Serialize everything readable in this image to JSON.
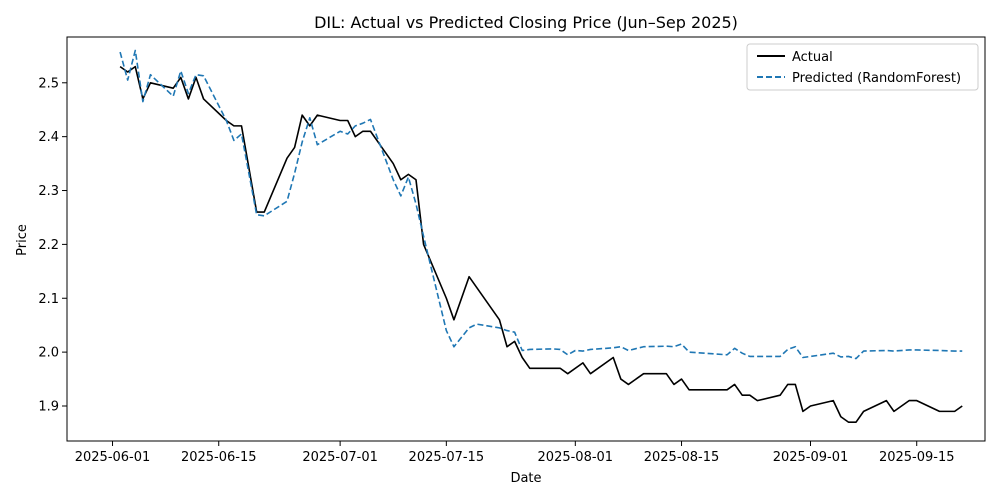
{
  "chart_data": {
    "type": "line",
    "title": "DIL: Actual vs Predicted Closing Price (Jun–Sep 2025)",
    "xlabel": "Date",
    "ylabel": "Price",
    "xlim": [
      "2025-05-26",
      "2025-09-24"
    ],
    "ylim": [
      1.835,
      2.585
    ],
    "x_ticks": [
      "2025-06-01",
      "2025-06-15",
      "2025-07-01",
      "2025-07-15",
      "2025-08-01",
      "2025-08-15",
      "2025-09-01",
      "2025-09-15"
    ],
    "y_ticks": [
      1.9,
      2.0,
      2.1,
      2.2,
      2.3,
      2.4,
      2.5
    ],
    "y_tick_labels": [
      "1.9",
      "2.0",
      "2.1",
      "2.2",
      "2.3",
      "2.4",
      "2.5"
    ],
    "grid": false,
    "legend": {
      "position": "top-right"
    },
    "series": [
      {
        "name": "Actual",
        "color": "#000000",
        "style": "solid",
        "points": [
          [
            "2025-06-02",
            2.53
          ],
          [
            "2025-06-03",
            2.52
          ],
          [
            "2025-06-04",
            2.53
          ],
          [
            "2025-06-05",
            2.47
          ],
          [
            "2025-06-06",
            2.5
          ],
          [
            "2025-06-09",
            2.49
          ],
          [
            "2025-06-10",
            2.51
          ],
          [
            "2025-06-11",
            2.47
          ],
          [
            "2025-06-12",
            2.51
          ],
          [
            "2025-06-13",
            2.47
          ],
          [
            "2025-06-16",
            2.43
          ],
          [
            "2025-06-17",
            2.42
          ],
          [
            "2025-06-18",
            2.42
          ],
          [
            "2025-06-20",
            2.26
          ],
          [
            "2025-06-21",
            2.26
          ],
          [
            "2025-06-24",
            2.36
          ],
          [
            "2025-06-25",
            2.38
          ],
          [
            "2025-06-26",
            2.44
          ],
          [
            "2025-06-27",
            2.42
          ],
          [
            "2025-06-28",
            2.44
          ],
          [
            "2025-07-01",
            2.43
          ],
          [
            "2025-07-02",
            2.43
          ],
          [
            "2025-07-03",
            2.4
          ],
          [
            "2025-07-04",
            2.41
          ],
          [
            "2025-07-05",
            2.41
          ],
          [
            "2025-07-08",
            2.35
          ],
          [
            "2025-07-09",
            2.32
          ],
          [
            "2025-07-10",
            2.33
          ],
          [
            "2025-07-11",
            2.32
          ],
          [
            "2025-07-12",
            2.2
          ],
          [
            "2025-07-15",
            2.1
          ],
          [
            "2025-07-16",
            2.06
          ],
          [
            "2025-07-18",
            2.14
          ],
          [
            "2025-07-22",
            2.06
          ],
          [
            "2025-07-23",
            2.01
          ],
          [
            "2025-07-24",
            2.02
          ],
          [
            "2025-07-25",
            1.99
          ],
          [
            "2025-07-26",
            1.97
          ],
          [
            "2025-07-29",
            1.97
          ],
          [
            "2025-07-30",
            1.97
          ],
          [
            "2025-07-31",
            1.96
          ],
          [
            "2025-08-02",
            1.98
          ],
          [
            "2025-08-03",
            1.96
          ],
          [
            "2025-08-06",
            1.99
          ],
          [
            "2025-08-07",
            1.95
          ],
          [
            "2025-08-08",
            1.94
          ],
          [
            "2025-08-10",
            1.96
          ],
          [
            "2025-08-13",
            1.96
          ],
          [
            "2025-08-14",
            1.94
          ],
          [
            "2025-08-15",
            1.95
          ],
          [
            "2025-08-16",
            1.93
          ],
          [
            "2025-08-21",
            1.93
          ],
          [
            "2025-08-22",
            1.94
          ],
          [
            "2025-08-23",
            1.92
          ],
          [
            "2025-08-24",
            1.92
          ],
          [
            "2025-08-25",
            1.91
          ],
          [
            "2025-08-28",
            1.92
          ],
          [
            "2025-08-29",
            1.94
          ],
          [
            "2025-08-30",
            1.94
          ],
          [
            "2025-08-31",
            1.89
          ],
          [
            "2025-09-01",
            1.9
          ],
          [
            "2025-09-04",
            1.91
          ],
          [
            "2025-09-05",
            1.88
          ],
          [
            "2025-09-06",
            1.87
          ],
          [
            "2025-09-07",
            1.87
          ],
          [
            "2025-09-08",
            1.89
          ],
          [
            "2025-09-11",
            1.91
          ],
          [
            "2025-09-12",
            1.89
          ],
          [
            "2025-09-14",
            1.91
          ],
          [
            "2025-09-15",
            1.91
          ],
          [
            "2025-09-18",
            1.89
          ],
          [
            "2025-09-20",
            1.89
          ],
          [
            "2025-09-21",
            1.9
          ]
        ]
      },
      {
        "name": "Predicted (RandomForest)",
        "color": "#1f77b4",
        "style": "dashed",
        "points": [
          [
            "2025-06-02",
            2.557
          ],
          [
            "2025-06-03",
            2.505
          ],
          [
            "2025-06-04",
            2.56
          ],
          [
            "2025-06-05",
            2.465
          ],
          [
            "2025-06-06",
            2.515
          ],
          [
            "2025-06-09",
            2.475
          ],
          [
            "2025-06-10",
            2.522
          ],
          [
            "2025-06-11",
            2.48
          ],
          [
            "2025-06-12",
            2.515
          ],
          [
            "2025-06-13",
            2.513
          ],
          [
            "2025-06-16",
            2.43
          ],
          [
            "2025-06-17",
            2.393
          ],
          [
            "2025-06-18",
            2.405
          ],
          [
            "2025-06-20",
            2.255
          ],
          [
            "2025-06-21",
            2.253
          ],
          [
            "2025-06-24",
            2.28
          ],
          [
            "2025-06-25",
            2.332
          ],
          [
            "2025-06-26",
            2.39
          ],
          [
            "2025-06-27",
            2.435
          ],
          [
            "2025-06-28",
            2.385
          ],
          [
            "2025-07-01",
            2.41
          ],
          [
            "2025-07-02",
            2.405
          ],
          [
            "2025-07-03",
            2.42
          ],
          [
            "2025-07-04",
            2.425
          ],
          [
            "2025-07-05",
            2.432
          ],
          [
            "2025-07-08",
            2.32
          ],
          [
            "2025-07-09",
            2.29
          ],
          [
            "2025-07-10",
            2.325
          ],
          [
            "2025-07-11",
            2.275
          ],
          [
            "2025-07-12",
            2.215
          ],
          [
            "2025-07-15",
            2.04
          ],
          [
            "2025-07-16",
            2.01
          ],
          [
            "2025-07-18",
            2.045
          ],
          [
            "2025-07-19",
            2.052
          ],
          [
            "2025-07-22",
            2.045
          ],
          [
            "2025-07-23",
            2.04
          ],
          [
            "2025-07-24",
            2.037
          ],
          [
            "2025-07-25",
            2.003
          ],
          [
            "2025-07-26",
            2.005
          ],
          [
            "2025-07-29",
            2.006
          ],
          [
            "2025-07-30",
            2.005
          ],
          [
            "2025-07-31",
            1.995
          ],
          [
            "2025-08-01",
            2.003
          ],
          [
            "2025-08-02",
            2.002
          ],
          [
            "2025-08-03",
            2.005
          ],
          [
            "2025-08-06",
            2.008
          ],
          [
            "2025-08-07",
            2.01
          ],
          [
            "2025-08-08",
            2.003
          ],
          [
            "2025-08-10",
            2.01
          ],
          [
            "2025-08-13",
            2.011
          ],
          [
            "2025-08-14",
            2.01
          ],
          [
            "2025-08-15",
            2.015
          ],
          [
            "2025-08-16",
            2.0
          ],
          [
            "2025-08-21",
            1.995
          ],
          [
            "2025-08-22",
            2.007
          ],
          [
            "2025-08-23",
            1.998
          ],
          [
            "2025-08-24",
            1.992
          ],
          [
            "2025-08-28",
            1.992
          ],
          [
            "2025-08-29",
            2.005
          ],
          [
            "2025-08-30",
            2.01
          ],
          [
            "2025-08-31",
            1.99
          ],
          [
            "2025-09-01",
            1.992
          ],
          [
            "2025-09-04",
            1.998
          ],
          [
            "2025-09-05",
            1.991
          ],
          [
            "2025-09-06",
            1.992
          ],
          [
            "2025-09-07",
            1.988
          ],
          [
            "2025-09-08",
            2.002
          ],
          [
            "2025-09-11",
            2.003
          ],
          [
            "2025-09-12",
            2.002
          ],
          [
            "2025-09-14",
            2.004
          ],
          [
            "2025-09-15",
            2.004
          ],
          [
            "2025-09-18",
            2.003
          ],
          [
            "2025-09-20",
            2.002
          ],
          [
            "2025-09-21",
            2.002
          ]
        ]
      }
    ]
  }
}
